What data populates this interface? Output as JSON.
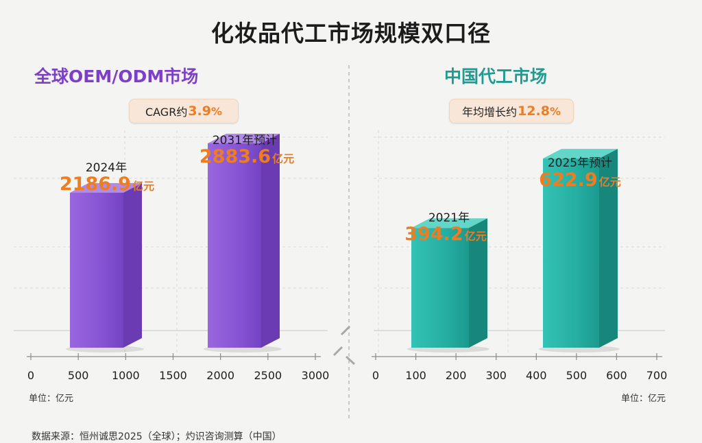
{
  "title": "化妆品代工市场规模双口径",
  "colors": {
    "purple": "#8e5ad6",
    "teal": "#2bb7aa",
    "orange": "#ee7d22"
  },
  "chart_data": [
    {
      "type": "bar",
      "title": "全球OEM/ODM市场",
      "badge": {
        "prefix": "CAGR约",
        "value": "3.9",
        "suffix": "%"
      },
      "categories": [
        "2024年",
        "2031年预计"
      ],
      "values": [
        2186.9,
        2883.6
      ],
      "value_labels": [
        "2186.9",
        "2883.6"
      ],
      "value_unit": "亿元",
      "xlim": [
        0,
        3000
      ],
      "xticks": [
        "0",
        "500",
        "1000",
        "1500",
        "2000",
        "2500",
        "3000"
      ],
      "unit_label": "单位：亿元"
    },
    {
      "type": "bar",
      "title": "中国代工市场",
      "badge": {
        "prefix": "年均增长约",
        "value": "12.8",
        "suffix": "%"
      },
      "categories": [
        "2021年",
        "2025年预计"
      ],
      "values": [
        394.2,
        622.9
      ],
      "value_labels": [
        "394.2",
        "622.9"
      ],
      "value_unit": "亿元",
      "xlim": [
        0,
        700
      ],
      "xticks": [
        "0",
        "100",
        "200",
        "300",
        "400",
        "500",
        "600",
        "700"
      ],
      "unit_label": "单位：亿元"
    }
  ],
  "source": "数据来源：恒州诚思2025（全球）；灼识咨询测算（中国）"
}
